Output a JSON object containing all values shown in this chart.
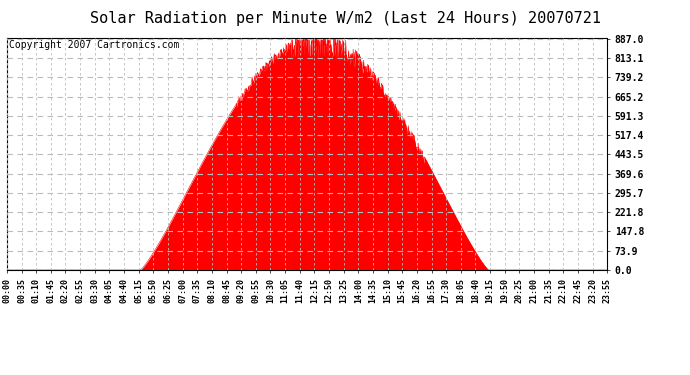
{
  "title": "Solar Radiation per Minute W/m2 (Last 24 Hours) 20070721",
  "copyright_text": "Copyright 2007 Cartronics.com",
  "yticks": [
    0.0,
    73.9,
    147.8,
    221.8,
    295.7,
    369.6,
    443.5,
    517.4,
    591.3,
    665.2,
    739.2,
    813.1,
    887.0
  ],
  "ymin": 0.0,
  "ymax": 887.0,
  "fill_color": "#FF0000",
  "line_color": "#FF0000",
  "dashed_line_color": "#FF0000",
  "grid_color": "#BBBBBB",
  "bg_color": "#FFFFFF",
  "title_fontsize": 11,
  "copyright_fontsize": 7,
  "xtick_labels": [
    "00:00",
    "00:35",
    "01:10",
    "01:45",
    "02:20",
    "02:55",
    "03:30",
    "04:05",
    "04:40",
    "05:15",
    "05:50",
    "06:25",
    "07:00",
    "07:35",
    "08:10",
    "08:45",
    "09:20",
    "09:55",
    "10:30",
    "11:05",
    "11:40",
    "12:15",
    "12:50",
    "13:25",
    "14:00",
    "14:35",
    "15:10",
    "15:45",
    "16:20",
    "16:55",
    "17:30",
    "18:05",
    "18:40",
    "19:15",
    "19:50",
    "20:25",
    "21:00",
    "21:35",
    "22:10",
    "22:45",
    "23:20",
    "23:55"
  ],
  "num_points": 1440,
  "sunrise_idx": 320,
  "sunset_idx": 1155,
  "peak_idx": 740,
  "peak_value": 887.0
}
